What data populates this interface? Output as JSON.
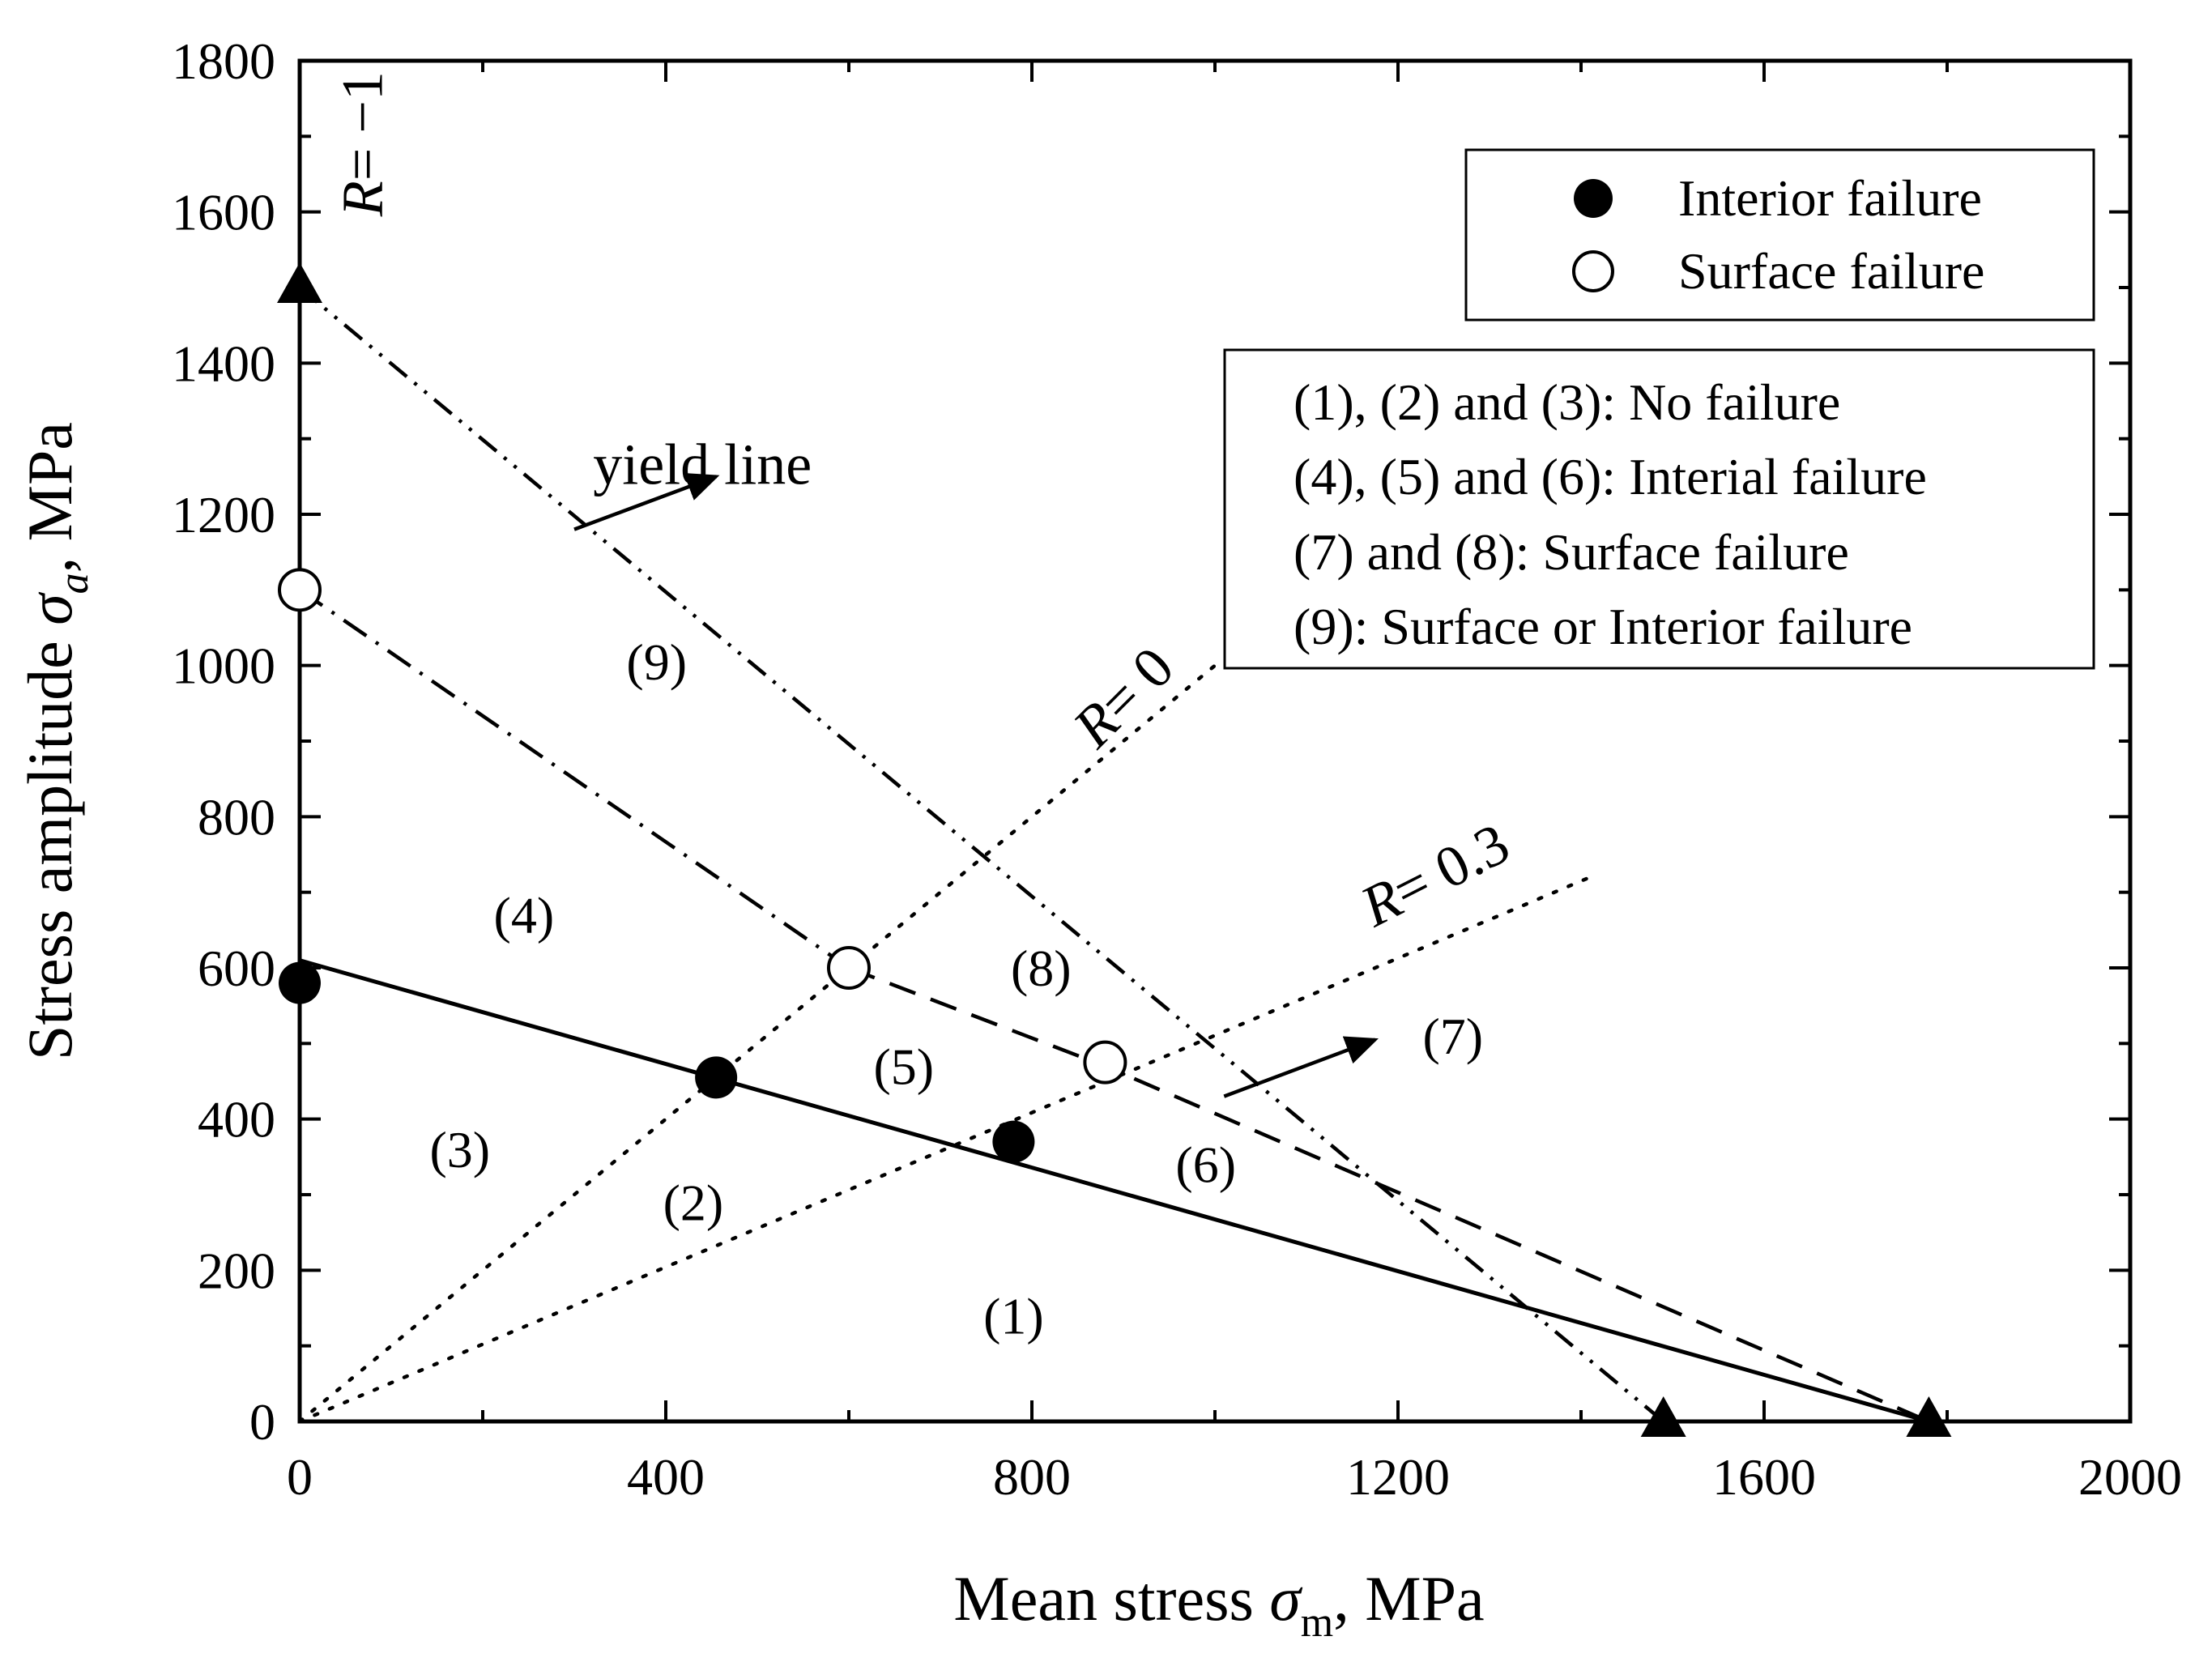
{
  "chart_data": {
    "type": "line",
    "title": "",
    "xlabel": {
      "main": "Mean stress ",
      "symbol": "σ",
      "subscript": "m",
      "unit": ", MPa"
    },
    "ylabel": {
      "main": "Stress amplitude ",
      "symbol": "σ",
      "subscript": "a",
      "unit": ", MPa"
    },
    "xlim": [
      0,
      2000
    ],
    "ylim": [
      0,
      1800
    ],
    "xticks": [
      0,
      400,
      800,
      1200,
      1600,
      2000
    ],
    "yticks": [
      0,
      200,
      400,
      600,
      800,
      1000,
      1200,
      1400,
      1600,
      1800
    ],
    "xtick_labels": [
      "0",
      "400",
      "800",
      "1200",
      "1600",
      "2000"
    ],
    "ytick_labels": [
      "0",
      "200",
      "400",
      "600",
      "800",
      "1000",
      "1200",
      "1400",
      "1600",
      "1800"
    ],
    "grid": false,
    "lines": [
      {
        "name": "interior-failure-line",
        "style": "solid",
        "points": [
          [
            0,
            610
          ],
          [
            1780,
            0
          ]
        ]
      },
      {
        "name": "surface-failure-line",
        "style": "dash-dot",
        "points": [
          [
            0,
            1100
          ],
          [
            600,
            600
          ]
        ]
      },
      {
        "name": "surface-failure-line-upper",
        "style": "dashed",
        "points": [
          [
            600,
            600
          ],
          [
            880,
            470
          ],
          [
            1780,
            0
          ]
        ]
      },
      {
        "name": "yield-line",
        "style": "dash-dot-dot",
        "points": [
          [
            0,
            1500
          ],
          [
            1490,
            0
          ]
        ]
      },
      {
        "name": "r-0-line",
        "style": "dotted",
        "points": [
          [
            0,
            0
          ],
          [
            1000,
            1000
          ]
        ]
      },
      {
        "name": "r-0.3-line",
        "style": "dotted",
        "points": [
          [
            0,
            0
          ],
          [
            1410,
            720
          ]
        ]
      }
    ],
    "series": [
      {
        "name": "Interior failure",
        "marker": "filled-circle",
        "points": [
          [
            0,
            580
          ],
          [
            455,
            455
          ],
          [
            780,
            370
          ]
        ]
      },
      {
        "name": "Surface failure",
        "marker": "open-circle",
        "points": [
          [
            0,
            1100
          ],
          [
            600,
            600
          ],
          [
            880,
            475
          ]
        ]
      },
      {
        "name": "Endpoints",
        "marker": "filled-triangle",
        "points": [
          [
            0,
            1500
          ],
          [
            1490,
            0
          ],
          [
            1780,
            0
          ]
        ]
      }
    ],
    "legend": {
      "placement": "top-right",
      "entries": [
        {
          "label": "Interior failure",
          "marker": "filled-circle"
        },
        {
          "label": "Surface failure",
          "marker": "open-circle"
        }
      ]
    },
    "info_box": {
      "placement": "upper-right",
      "lines": [
        "(1), (2) and (3): No failure",
        "(4), (5) and (6): Interial failure",
        "(7) and (8): Surface failure",
        "(9): Surface or Interior failure"
      ]
    },
    "region_labels": [
      {
        "text": "(1)",
        "x": 780,
        "y": 140
      },
      {
        "text": "(2)",
        "x": 430,
        "y": 290
      },
      {
        "text": "(3)",
        "x": 175,
        "y": 360
      },
      {
        "text": "(4)",
        "x": 245,
        "y": 670
      },
      {
        "text": "(5)",
        "x": 660,
        "y": 470
      },
      {
        "text": "(6)",
        "x": 990,
        "y": 340
      },
      {
        "text": "(7)",
        "x": 1260,
        "y": 510
      },
      {
        "text": "(8)",
        "x": 810,
        "y": 600
      },
      {
        "text": "(9)",
        "x": 390,
        "y": 1005
      }
    ],
    "annotations": [
      {
        "text": "yield line",
        "x": 440,
        "y": 1240
      },
      {
        "text": "R= 0",
        "x": 915,
        "y": 940,
        "angle": -45
      },
      {
        "text": "R= 0.3",
        "x": 1250,
        "y": 700,
        "angle": -27
      },
      {
        "text": "R= −1",
        "x": 90,
        "y": 1690,
        "angle": -90
      }
    ]
  }
}
